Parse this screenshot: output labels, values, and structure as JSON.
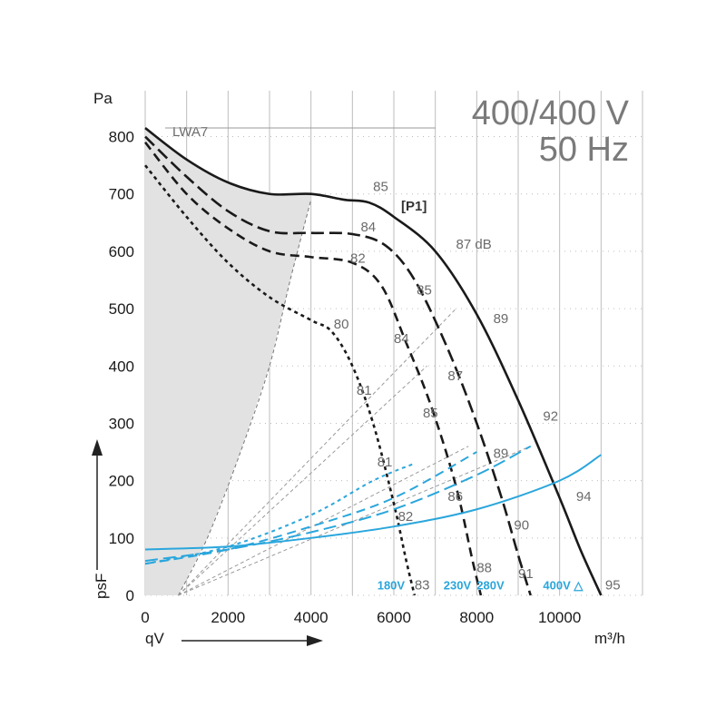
{
  "chart_data": {
    "type": "line",
    "title": "400/400 V",
    "subtitle": "50 Hz",
    "ylabel": "Pa",
    "ylabel_side": "psF",
    "xlabel_left": "qV",
    "xunit": "m³/h",
    "xlim": [
      0,
      12000
    ],
    "ylim": [
      0,
      880
    ],
    "x_ticks": [
      0,
      2000,
      4000,
      6000,
      8000,
      10000
    ],
    "y_ticks": [
      0,
      100,
      200,
      300,
      400,
      500,
      600,
      700,
      800
    ],
    "grid": true,
    "lwa_label": "LWA7",
    "p1_label": "[P1]",
    "fan_curves": [
      {
        "voltage": "400V △",
        "points": [
          [
            0,
            815
          ],
          [
            1000,
            760
          ],
          [
            2000,
            720
          ],
          [
            3000,
            700
          ],
          [
            4000,
            700
          ],
          [
            4800,
            690
          ],
          [
            5400,
            685
          ],
          [
            6000,
            660
          ],
          [
            7000,
            600
          ],
          [
            8000,
            490
          ],
          [
            9000,
            340
          ],
          [
            10000,
            170
          ],
          [
            10500,
            80
          ],
          [
            11000,
            0
          ]
        ]
      },
      {
        "voltage": "280V",
        "points": [
          [
            0,
            800
          ],
          [
            1000,
            730
          ],
          [
            2000,
            670
          ],
          [
            3000,
            635
          ],
          [
            4000,
            632
          ],
          [
            5000,
            630
          ],
          [
            5800,
            610
          ],
          [
            6500,
            550
          ],
          [
            7300,
            430
          ],
          [
            8000,
            300
          ],
          [
            8600,
            170
          ],
          [
            9000,
            70
          ],
          [
            9300,
            0
          ]
        ]
      },
      {
        "voltage": "230V",
        "points": [
          [
            0,
            790
          ],
          [
            1000,
            700
          ],
          [
            2000,
            640
          ],
          [
            3000,
            600
          ],
          [
            4000,
            590
          ],
          [
            5000,
            580
          ],
          [
            5700,
            540
          ],
          [
            6300,
            440
          ],
          [
            6900,
            330
          ],
          [
            7500,
            190
          ],
          [
            7900,
            60
          ],
          [
            8100,
            0
          ]
        ]
      },
      {
        "voltage": "180V",
        "points": [
          [
            0,
            750
          ],
          [
            1000,
            660
          ],
          [
            2000,
            580
          ],
          [
            3000,
            520
          ],
          [
            4000,
            480
          ],
          [
            4500,
            460
          ],
          [
            5000,
            400
          ],
          [
            5500,
            300
          ],
          [
            6000,
            160
          ],
          [
            6300,
            60
          ],
          [
            6500,
            0
          ]
        ]
      }
    ],
    "system_curves": [
      {
        "points": [
          [
            800,
            0
          ],
          [
            7500,
            500
          ]
        ]
      },
      {
        "points": [
          [
            800,
            0
          ],
          [
            6800,
            400
          ]
        ]
      },
      {
        "points": [
          [
            800,
            0
          ],
          [
            7800,
            260
          ]
        ]
      },
      {
        "points": [
          [
            800,
            0
          ],
          [
            9300,
            260
          ]
        ]
      }
    ],
    "power_curves": [
      {
        "voltage": "400V △",
        "points": [
          [
            0,
            80
          ],
          [
            2000,
            85
          ],
          [
            4000,
            100
          ],
          [
            6000,
            120
          ],
          [
            8000,
            150
          ],
          [
            10000,
            200
          ],
          [
            11000,
            245
          ]
        ]
      },
      {
        "voltage": "280V",
        "points": [
          [
            0,
            60
          ],
          [
            2000,
            80
          ],
          [
            4000,
            110
          ],
          [
            6000,
            150
          ],
          [
            8000,
            210
          ],
          [
            9300,
            260
          ]
        ]
      },
      {
        "voltage": "230V",
        "points": [
          [
            0,
            55
          ],
          [
            2000,
            80
          ],
          [
            4000,
            120
          ],
          [
            6000,
            170
          ],
          [
            8000,
            250
          ]
        ]
      },
      {
        "voltage": "180V",
        "points": [
          [
            0,
            55
          ],
          [
            2000,
            85
          ],
          [
            4000,
            140
          ],
          [
            5500,
            200
          ],
          [
            6500,
            230
          ]
        ]
      }
    ],
    "region_boundary": [
      [
        800,
        0
      ],
      [
        1500,
        100
      ],
      [
        2300,
        250
      ],
      [
        3000,
        400
      ],
      [
        3500,
        550
      ],
      [
        4000,
        690
      ]
    ],
    "dB_labels": [
      {
        "text": "85",
        "x": 5500,
        "y": 705
      },
      {
        "text": "84",
        "x": 5200,
        "y": 635
      },
      {
        "text": "82",
        "x": 4950,
        "y": 580
      },
      {
        "text": "80",
        "x": 4550,
        "y": 465
      },
      {
        "text": "87 dB",
        "x": 7500,
        "y": 605
      },
      {
        "text": "85",
        "x": 6550,
        "y": 525
      },
      {
        "text": "84",
        "x": 6000,
        "y": 440
      },
      {
        "text": "81",
        "x": 5100,
        "y": 350
      },
      {
        "text": "89",
        "x": 8400,
        "y": 475
      },
      {
        "text": "87",
        "x": 7300,
        "y": 375
      },
      {
        "text": "85",
        "x": 6700,
        "y": 310
      },
      {
        "text": "92",
        "x": 9600,
        "y": 305
      },
      {
        "text": "89",
        "x": 8400,
        "y": 240
      },
      {
        "text": "81",
        "x": 5600,
        "y": 225
      },
      {
        "text": "86",
        "x": 7300,
        "y": 165
      },
      {
        "text": "82",
        "x": 6100,
        "y": 130
      },
      {
        "text": "90",
        "x": 8900,
        "y": 115
      },
      {
        "text": "94",
        "x": 10400,
        "y": 165
      },
      {
        "text": "88",
        "x": 8000,
        "y": 40
      },
      {
        "text": "91",
        "x": 9000,
        "y": 30
      },
      {
        "text": "83",
        "x": 6500,
        "y": 10
      },
      {
        "text": "95",
        "x": 11100,
        "y": 10
      }
    ],
    "voltage_labels": [
      {
        "text": "180V",
        "x": 5600,
        "y": 10
      },
      {
        "text": "230V",
        "x": 7200,
        "y": 10
      },
      {
        "text": "280V",
        "x": 8000,
        "y": 10
      },
      {
        "text": "400V △",
        "x": 9600,
        "y": 10
      }
    ]
  }
}
